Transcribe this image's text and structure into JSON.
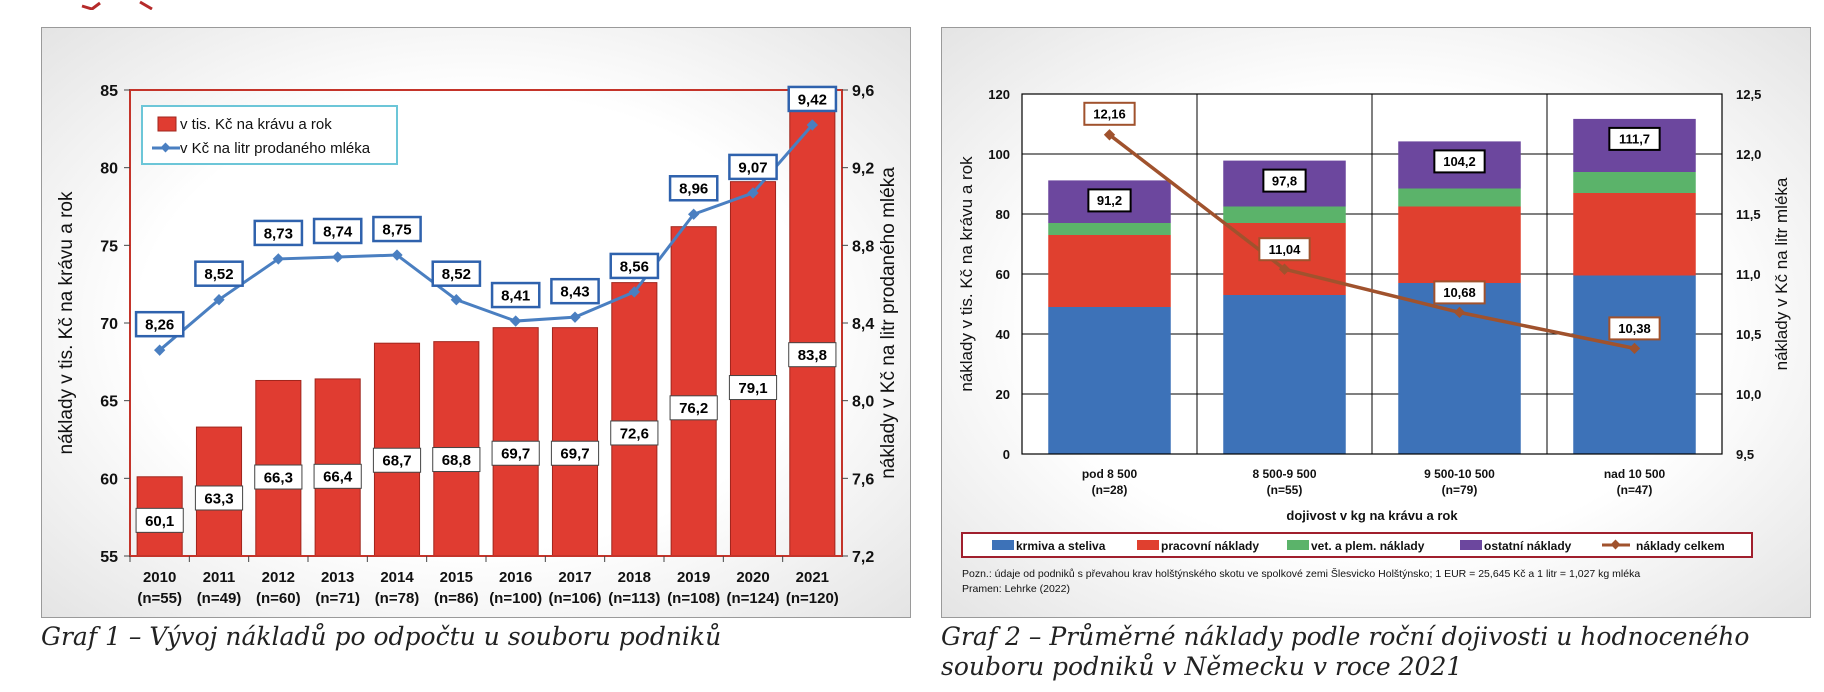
{
  "chart_data": [
    {
      "type": "bar",
      "ylabel": "náklady v tis. Kč na krávu a rok",
      "y2label": "náklady v Kč na litr prodaného mléka",
      "ylim": [
        55,
        85
      ],
      "y2lim": [
        7.2,
        9.6
      ],
      "yticks": [
        "55",
        "60",
        "65",
        "70",
        "75",
        "80",
        "85"
      ],
      "y2ticks": [
        "7,2",
        "7,6",
        "8,0",
        "8,4",
        "8,8",
        "9,2",
        "9,6"
      ],
      "categories": [
        "2010",
        "2011",
        "2012",
        "2013",
        "2014",
        "2015",
        "2016",
        "2017",
        "2018",
        "2019",
        "2020",
        "2021"
      ],
      "category_n": [
        "(n=55)",
        "(n=49)",
        "(n=60)",
        "(n=71)",
        "(n=78)",
        "(n=86)",
        "(n=100)",
        "(n=106)",
        "(n=113)",
        "(n=108)",
        "(n=124)",
        "(n=120)"
      ],
      "series": [
        {
          "name": "v tis. Kč na krávu a rok",
          "type": "bar",
          "color": "#e03c31",
          "values": [
            60.1,
            63.3,
            66.3,
            66.4,
            68.7,
            68.8,
            69.7,
            69.7,
            72.6,
            76.2,
            79.1,
            83.8
          ],
          "labels": [
            "60,1",
            "63,3",
            "66,3",
            "66,4",
            "68,7",
            "68,8",
            "69,7",
            "69,7",
            "72,6",
            "76,2",
            "79,1",
            "83,8"
          ]
        },
        {
          "name": "v Kč na litr prodaného mléka",
          "type": "line",
          "axis": "right",
          "color": "#4a7fc1",
          "values": [
            8.26,
            8.52,
            8.73,
            8.74,
            8.75,
            8.52,
            8.41,
            8.43,
            8.56,
            8.96,
            9.07,
            9.42
          ],
          "labels": [
            "8,26",
            "8,52",
            "8,73",
            "8,74",
            "8,75",
            "8,52",
            "8,41",
            "8,43",
            "8,56",
            "8,96",
            "9,07",
            "9,42"
          ]
        }
      ],
      "legend_position": "top-left"
    },
    {
      "type": "bar",
      "stacked": true,
      "xlabel": "dojivost v kg na krávu a rok",
      "ylabel": "náklady v tis. Kč na krávu a rok",
      "y2label": "náklady v Kč na litr mléka",
      "ylim": [
        0,
        120
      ],
      "y2lim": [
        9.5,
        12.5
      ],
      "yticks": [
        "0",
        "20",
        "40",
        "60",
        "80",
        "100",
        "120"
      ],
      "y2ticks": [
        "9,5",
        "10,0",
        "10,5",
        "11,0",
        "11,5",
        "12,0",
        "12,5"
      ],
      "categories": [
        "pod 8 500",
        "8 500-9 500",
        "9 500-10 500",
        "nad 10 500"
      ],
      "category_n": [
        "(n=28)",
        "(n=55)",
        "(n=79)",
        "(n=47)"
      ],
      "series": [
        {
          "name": "krmiva a steliva",
          "color": "#3d72b8",
          "values": [
            49,
            53,
            57,
            59.5
          ]
        },
        {
          "name": "pracovní náklady",
          "color": "#e0402f",
          "values": [
            24,
            24,
            25.5,
            27.5
          ]
        },
        {
          "name": "vet. a plem. náklady",
          "color": "#5bb36a",
          "values": [
            4,
            5.5,
            6,
            7
          ]
        },
        {
          "name": "ostatní náklady",
          "color": "#6c479e",
          "values": [
            14.2,
            15.3,
            15.7,
            17.7
          ]
        },
        {
          "name": "náklady celkem",
          "type": "line",
          "axis": "right",
          "color": "#a0522d",
          "values": [
            12.16,
            11.04,
            10.68,
            10.38
          ],
          "labels": [
            "12,16",
            "11,04",
            "10,68",
            "10,38"
          ]
        }
      ],
      "total_labels": [
        "91,2",
        "97,8",
        "104,2",
        "111,7"
      ],
      "note": "Pozn.: údaje od podniků s převahou krav holštýnského skotu  ve spolkové zemi Šlesvicko Holštýnsko; 1 EUR = 25,645 Kč a 1 litr = 1,027 kg mléka",
      "source": "Pramen: Lehrke (2022)",
      "legend_position": "bottom"
    }
  ],
  "captions": {
    "graf1": "Graf 1 – Vývoj nákladů po odpočtu u souboru podniků",
    "graf2": "Graf 2 – Průměrné náklady podle roční dojivosti u hodnoceného souboru podniků v Německu v roce 2021"
  },
  "colors": {
    "decoration": "#b52a2a"
  }
}
